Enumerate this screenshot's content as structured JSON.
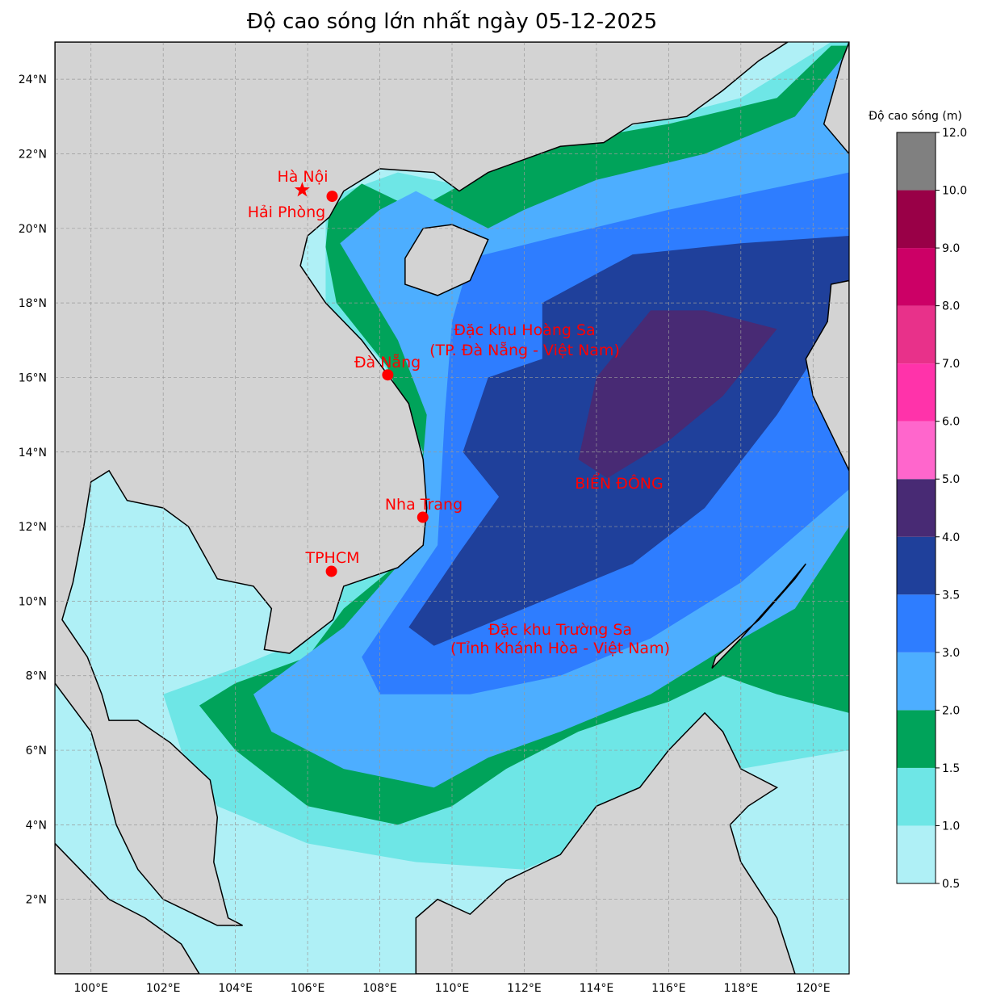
{
  "title": "Độ cao sóng lớn nhất ngày 05-12-2025",
  "axes": {
    "lon_ticks": [
      "100°E",
      "102°E",
      "104°E",
      "106°E",
      "108°E",
      "110°E",
      "112°E",
      "114°E",
      "116°E",
      "118°E",
      "120°E"
    ],
    "lat_ticks": [
      "2°N",
      "4°N",
      "6°N",
      "8°N",
      "10°N",
      "12°N",
      "14°N",
      "16°N",
      "18°N",
      "20°N",
      "22°N",
      "24°N"
    ]
  },
  "labels": {
    "hanoi": "Hà Nội",
    "haiphong": "Hải Phòng",
    "danang": "Đà Nẵng",
    "nhatrang": "Nha Trang",
    "tphcm": "TPHCM",
    "hoangsa_1": "Đặc khu Hoàng Sa",
    "hoangsa_2": "(TP. Đà Nẵng - Việt Nam)",
    "truongsa_1": "Đặc khu Trường Sa",
    "truongsa_2": "(Tỉnh Khánh Hòa - Việt Nam)",
    "biendong": "BIỂN ĐÔNG"
  },
  "colorbar": {
    "title": "Độ cao sóng (m)",
    "ticks": [
      "0.5",
      "1.0",
      "1.5",
      "2.0",
      "3.0",
      "3.5",
      "4.0",
      "5.0",
      "6.0",
      "7.0",
      "8.0",
      "9.0",
      "10.0",
      "12.0"
    ],
    "colors": [
      "#aff0f6",
      "#6ee6e6",
      "#00a35a",
      "#4daeff",
      "#2e7dff",
      "#1f409b",
      "#482a74",
      "#ff66cc",
      "#ff33aa",
      "#e8318a",
      "#cc0066",
      "#990047",
      "#808080"
    ]
  },
  "colors": {
    "land": "#d3d3d3",
    "sea_base": "#aff0f6",
    "marker": "#ff0000"
  }
}
